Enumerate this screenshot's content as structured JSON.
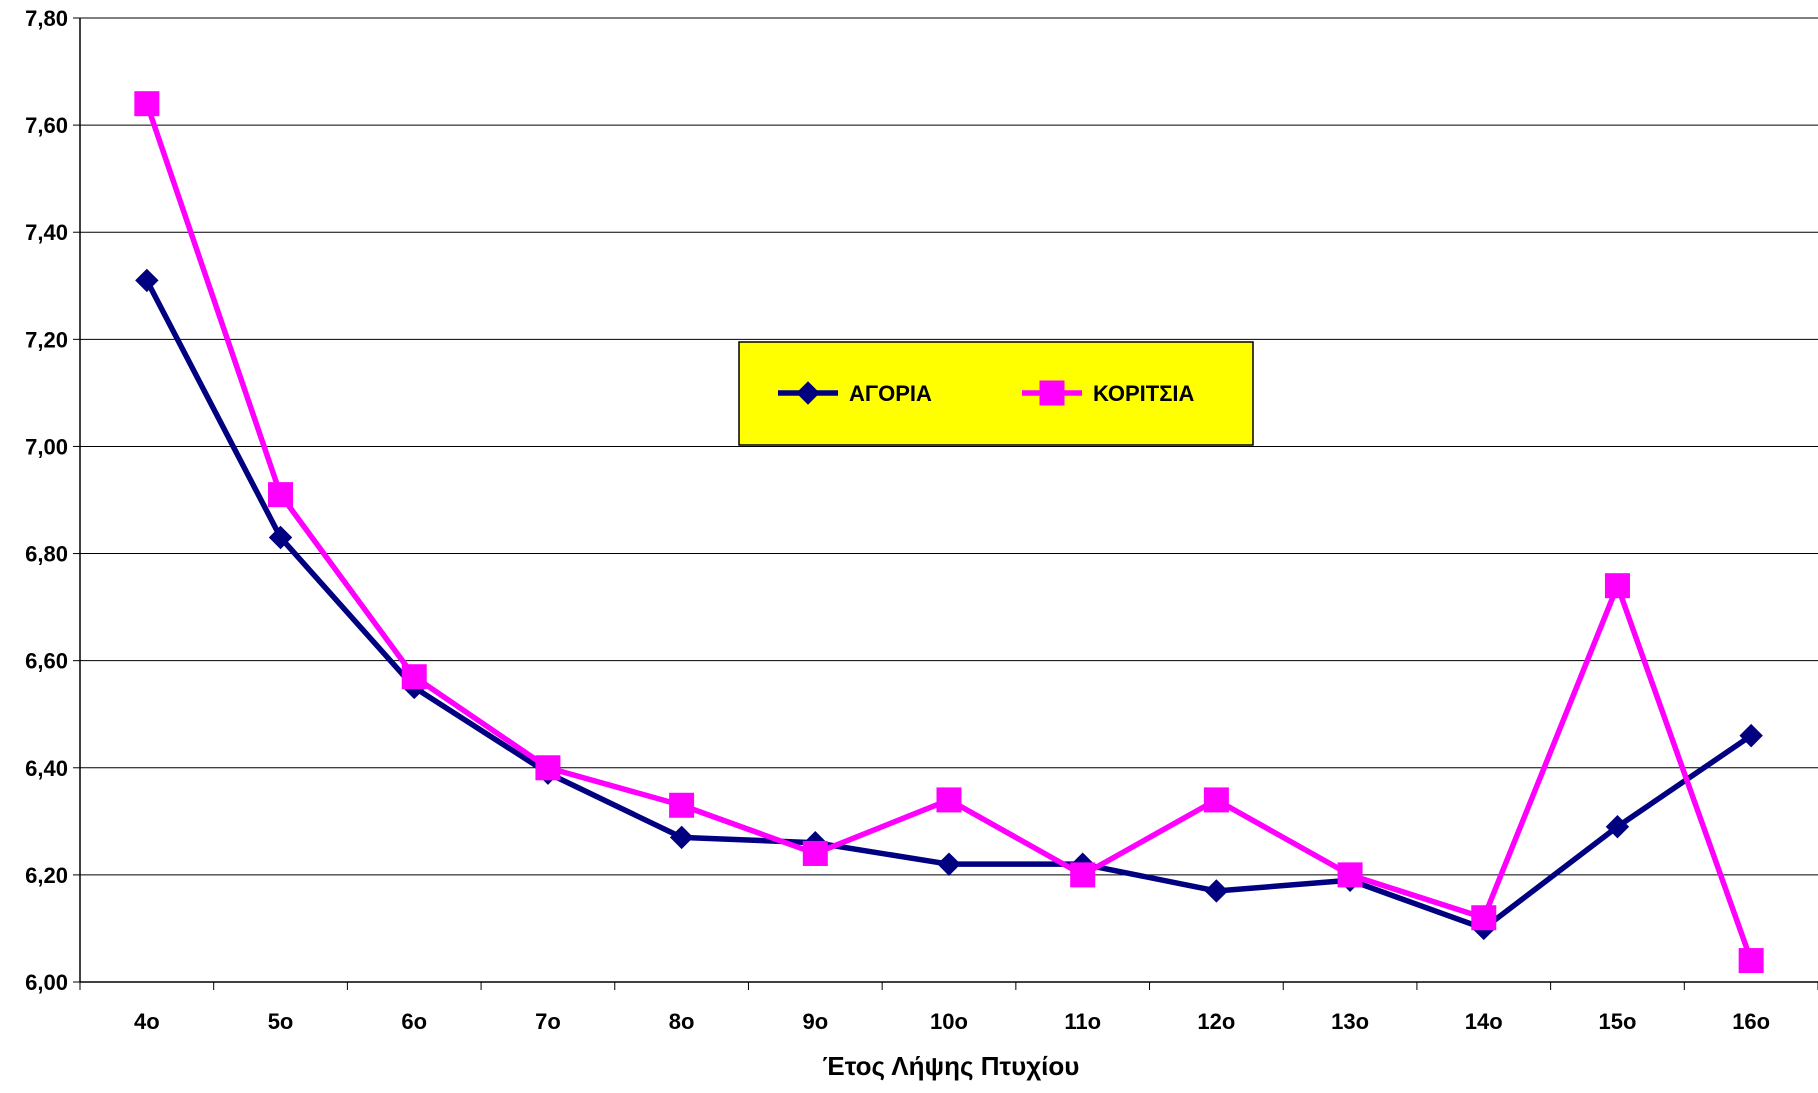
{
  "chart_data": {
    "type": "line",
    "xlabel": "Έτος Λήψης Πτυχίου",
    "ylabel": "",
    "ylim": [
      6.0,
      7.8
    ],
    "y_ticks": [
      "6,00",
      "6,20",
      "6,40",
      "6,60",
      "6,80",
      "7,00",
      "7,20",
      "7,40",
      "7,60",
      "7,80"
    ],
    "y_tick_values": [
      6.0,
      6.2,
      6.4,
      6.6,
      6.8,
      7.0,
      7.2,
      7.4,
      7.6,
      7.8
    ],
    "categories": [
      "4o",
      "5o",
      "6o",
      "7o",
      "8o",
      "9o",
      "10o",
      "11o",
      "12o",
      "13o",
      "14o",
      "15o",
      "16o"
    ],
    "grid": "horizontal",
    "legend_position": "center",
    "legend_background": "#ffff00",
    "series": [
      {
        "name": "ΑΓΟΡΙΑ",
        "color": "#000080",
        "marker": "diamond",
        "values": [
          7.31,
          6.83,
          6.55,
          6.39,
          6.27,
          6.26,
          6.22,
          6.22,
          6.17,
          6.19,
          6.1,
          6.29,
          6.46
        ]
      },
      {
        "name": "ΚΟΡΙΤΣΙΑ",
        "color": "#ff00ff",
        "marker": "square",
        "values": [
          7.64,
          6.91,
          6.57,
          6.4,
          6.33,
          6.24,
          6.34,
          6.2,
          6.34,
          6.2,
          6.12,
          6.74,
          6.04
        ]
      }
    ]
  }
}
